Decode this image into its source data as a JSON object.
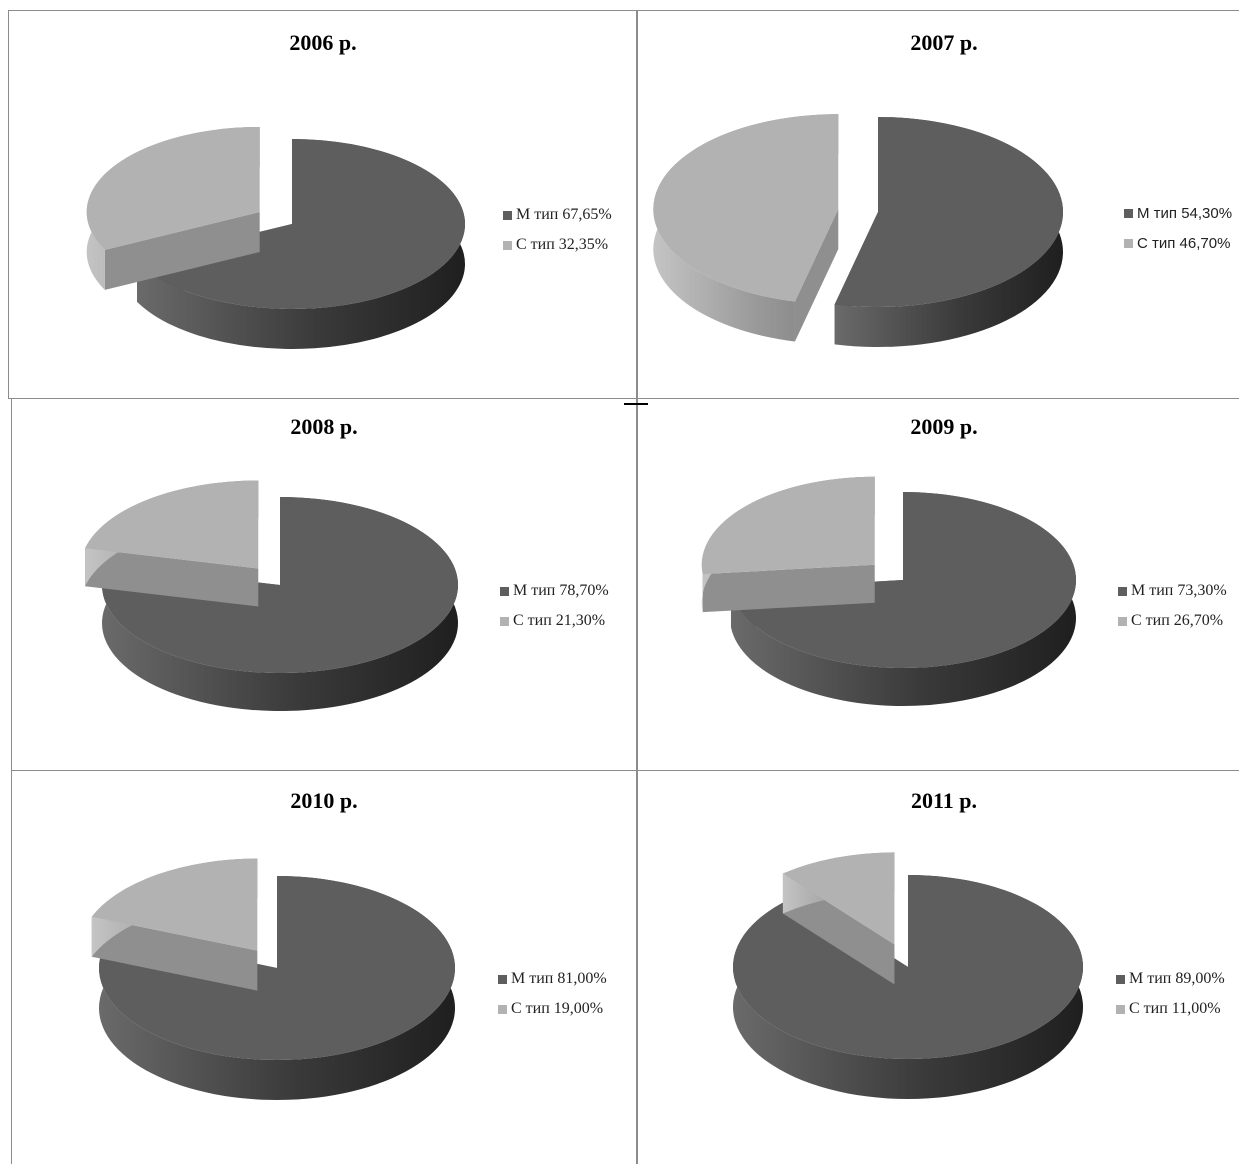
{
  "colors": {
    "m": "#5e5e5e",
    "c": "#b2b2b2",
    "edge_m": "#474747",
    "edge_c": "#8f8f8f"
  },
  "chart_data": [
    {
      "type": "pie",
      "title": "2006 р.",
      "categories": [
        "М тип",
        "С тип"
      ],
      "values": [
        67.65,
        32.35
      ],
      "legend": [
        "М тип 67,65%",
        "С тип 32,35%"
      ],
      "legend_position": "right"
    },
    {
      "type": "pie",
      "title": "2007 р.",
      "categories": [
        "М тип",
        "С тип"
      ],
      "values": [
        54.3,
        46.7
      ],
      "legend": [
        "М тип 54,30%",
        "С тип 46,70%"
      ],
      "legend_position": "right"
    },
    {
      "type": "pie",
      "title": "2008 р.",
      "categories": [
        "М тип",
        "С тип"
      ],
      "values": [
        78.7,
        21.3
      ],
      "legend": [
        "М тип 78,70%",
        "С тип 21,30%"
      ],
      "legend_position": "right"
    },
    {
      "type": "pie",
      "title": "2009 р.",
      "categories": [
        "М тип",
        "С тип"
      ],
      "values": [
        73.3,
        26.7
      ],
      "legend": [
        "М тип 73,30%",
        "С тип 26,70%"
      ],
      "legend_position": "right"
    },
    {
      "type": "pie",
      "title": "2010 р.",
      "categories": [
        "М тип",
        "С тип"
      ],
      "values": [
        81.0,
        19.0
      ],
      "legend": [
        "М тип 81,00%",
        "С тип 19,00%"
      ],
      "legend_position": "right"
    },
    {
      "type": "pie",
      "title": "2011 р.",
      "categories": [
        "М тип",
        "С тип"
      ],
      "values": [
        89.0,
        11.0
      ],
      "legend": [
        "М тип 89,00%",
        "С тип 11,00%"
      ],
      "legend_position": "right"
    }
  ]
}
